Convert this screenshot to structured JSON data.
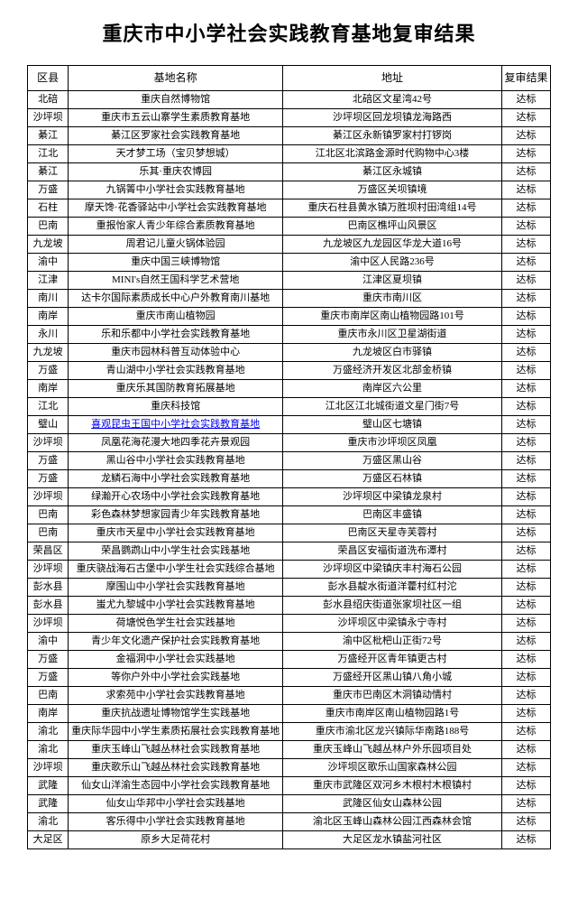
{
  "title": "重庆市中小学社会实践教育基地复审结果",
  "columns": {
    "district": "区县",
    "name": "基地名称",
    "address": "地址",
    "result": "复审结果"
  },
  "rows": [
    {
      "district": "北碚",
      "name": "重庆自然博物馆",
      "address": "北碚区文星湾42号",
      "result": "达标"
    },
    {
      "district": "沙坪坝",
      "name": "重庆市五云山寨学生素质教育基地",
      "address": "沙坪坝区回龙坝镇龙海路西",
      "result": "达标"
    },
    {
      "district": "綦江",
      "name": "綦江区罗家社会实践教育基地",
      "address": "綦江区永新镇罗家村打锣岗",
      "result": "达标"
    },
    {
      "district": "江北",
      "name": "天才梦工场（宝贝梦想城）",
      "address": "江北区北滨路金源时代购物中心3楼",
      "result": "达标"
    },
    {
      "district": "綦江",
      "name": "乐其·重庆农博园",
      "address": "綦江区永城镇",
      "result": "达标"
    },
    {
      "district": "万盛",
      "name": "九锅箐中小学社会实践教育基地",
      "address": "万盛区关坝镇境",
      "result": "达标"
    },
    {
      "district": "石柱",
      "name": "摩天馋·花香驿站中小学社会实践教育基地",
      "address": "重庆石柱县黄水镇万胜坝村田湾组14号",
      "result": "达标"
    },
    {
      "district": "巴南",
      "name": "重报怡家人青少年综合素质教育基地",
      "address": "巴南区樵坪山风景区",
      "result": "达标"
    },
    {
      "district": "九龙坡",
      "name": "周君记儿童火锅体验园",
      "address": "九龙坡区九龙园区华龙大道16号",
      "result": "达标"
    },
    {
      "district": "渝中",
      "name": "重庆中国三峡博物馆",
      "address": "渝中区人民路236号",
      "result": "达标"
    },
    {
      "district": "江津",
      "name": "MINI's自然王国科学艺术营地",
      "address": "江津区夏坝镇",
      "result": "达标"
    },
    {
      "district": "南川",
      "name": "达卡尔国际素质成长中心户外教育南川基地",
      "address": "重庆市南川区",
      "result": "达标"
    },
    {
      "district": "南岸",
      "name": "重庆市南山植物园",
      "address": "重庆市南岸区南山植物园路101号",
      "result": "达标"
    },
    {
      "district": "永川",
      "name": "乐和乐都中小学社会实践教育基地",
      "address": "重庆市永川区卫星湖街道",
      "result": "达标"
    },
    {
      "district": "九龙坡",
      "name": "重庆市园林科普互动体验中心",
      "address": "九龙坡区白市驿镇",
      "result": "达标"
    },
    {
      "district": "万盛",
      "name": "青山湖中小学社会实践教育基地",
      "address": "万盛经济开发区北部金桥镇",
      "result": "达标"
    },
    {
      "district": "南岸",
      "name": "重庆乐其国防教育拓展基地",
      "address": "南岸区六公里",
      "result": "达标"
    },
    {
      "district": "江北",
      "name": "重庆科技馆",
      "address": "江北区江北城街道文星门街7号",
      "result": "达标"
    },
    {
      "district": "璧山",
      "name": "喜观昆虫王国中小学社会实践教育基地",
      "name_link": true,
      "address": "璧山区七塘镇",
      "result": "达标"
    },
    {
      "district": "沙坪坝",
      "name": "凤凰花海花漫大地四季花卉景观园",
      "address": "重庆市沙坪坝区凤凰",
      "result": "达标"
    },
    {
      "district": "万盛",
      "name": "黑山谷中小学社会实践教育基地",
      "address": "万盛区黑山谷",
      "result": "达标"
    },
    {
      "district": "万盛",
      "name": "龙鳞石海中小学社会实践教育基地",
      "address": "万盛区石林镇",
      "result": "达标"
    },
    {
      "district": "沙坪坝",
      "name": "绿瀚开心农场中小学社会实践教育基地",
      "address": "沙坪坝区中梁镇龙泉村",
      "result": "达标"
    },
    {
      "district": "巴南",
      "name": "彩色森林梦想家园青少年实践教育基地",
      "address": "巴南区丰盛镇",
      "result": "达标"
    },
    {
      "district": "巴南",
      "name": "重庆市天星中小学社会实践教育基地",
      "address": "巴南区天星寺芙蓉村",
      "result": "达标"
    },
    {
      "district": "荣昌区",
      "name": "荣昌鹦鹉山中小学生社会实践基地",
      "address": "荣昌区安福街道洗布潭村",
      "result": "达标"
    },
    {
      "district": "沙坪坝",
      "name": "重庆骁战海石古堡中小学生社会实践综合基地",
      "address": "沙坪坝区中梁镇庆丰村海石公园",
      "result": "达标"
    },
    {
      "district": "彭水县",
      "name": "摩围山中小学社会实践教育基地",
      "address": "彭水县靛水街道洋藿村红村沱",
      "result": "达标"
    },
    {
      "district": "彭水县",
      "name": "蚩尤九黎城中小学社会实践教育基地",
      "address": "彭水县绍庆街道张家坝社区一组",
      "result": "达标"
    },
    {
      "district": "沙坪坝",
      "name": "荷塘悦色学生社会实践基地",
      "address": "沙坪坝区中梁镇永宁寺村",
      "result": "达标"
    },
    {
      "district": "渝中",
      "name": "青少年文化遗产保护社会实践教育基地",
      "address": "渝中区枇杷山正街72号",
      "result": "达标"
    },
    {
      "district": "万盛",
      "name": "金福洞中小学社会实践基地",
      "address": "万盛经开区青年镇更古村",
      "result": "达标"
    },
    {
      "district": "万盛",
      "name": "等你户外中小学社会实践基地",
      "address": "万盛经开区黑山镇八角小城",
      "result": "达标"
    },
    {
      "district": "巴南",
      "name": "求索苑中小学社会实践教育基地",
      "address": "重庆市巴南区木洞镇动情村",
      "result": "达标"
    },
    {
      "district": "南岸",
      "name": "重庆抗战遗址博物馆学生实践基地",
      "address": "重庆市南岸区南山植物园路1号",
      "result": "达标"
    },
    {
      "district": "渝北",
      "name": "重庆际华园中小学生素质拓展社会实践教育基地",
      "address": "重庆市渝北区龙兴镇际华南路188号",
      "result": "达标"
    },
    {
      "district": "渝北",
      "name": "重庆玉峰山飞越丛林社会实践教育基地",
      "address": "重庆玉峰山飞越丛林户外乐园项目处",
      "result": "达标"
    },
    {
      "district": "沙坪坝",
      "name": "重庆歌乐山飞越丛林社会实践教育基地",
      "address": "沙坪坝区歌乐山国家森林公园",
      "result": "达标"
    },
    {
      "district": "武隆",
      "name": "仙女山洋渝生态园中小学社会实践教育基地",
      "address": "重庆市武隆区双河乡木根村木根镇村",
      "result": "达标"
    },
    {
      "district": "武隆",
      "name": "仙女山华邦中小学社会实践基地",
      "address": "武隆区仙女山森林公园",
      "result": "达标"
    },
    {
      "district": "渝北",
      "name": "客乐得中小学社会实践教育基地",
      "address": "渝北区玉峰山森林公园江西森林会馆",
      "result": "达标"
    },
    {
      "district": "大足区",
      "name": "原乡大足荷花村",
      "address": "大足区龙水镇盐河社区",
      "result": "达标"
    }
  ]
}
